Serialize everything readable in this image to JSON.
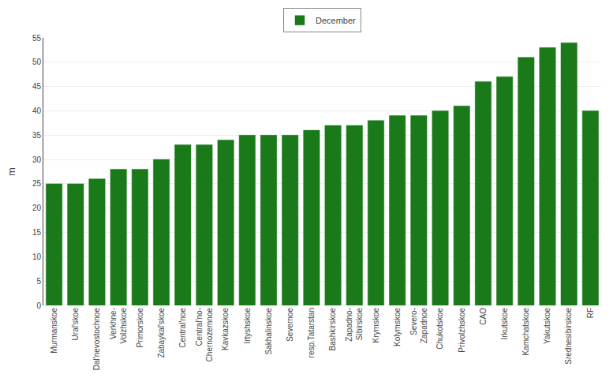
{
  "chart_data": {
    "type": "bar",
    "categories": [
      "Murmanskoe",
      "Ural'skoe",
      "Dal'nevostochnoe",
      "Verkhne-\nVolzhskoe",
      "Primorskoe",
      "Zabaykal'skoe",
      "Central'noe",
      "Central'no-\nChernozemnoe",
      "Kavkazskoe",
      "Irtyshskoe",
      "Sakhalinskoe",
      "Severnoe",
      "resp.Tatarstan",
      "Bashkirskoe",
      "Zapadno-\nSibirskoe",
      "Krymskoe",
      "Kolymskoe",
      "Severo-\nZapadnoe",
      "Chukotskoe",
      "Privolzhskoe",
      "CAO",
      "Irkutskoe",
      "Kamchatskoe",
      "Yakutskoe",
      "Srednesibirskoe",
      "RF"
    ],
    "series": [
      {
        "name": "December",
        "color": "#1a7a1a",
        "values": [
          25,
          25,
          26,
          28,
          28,
          30,
          33,
          33,
          34,
          35,
          35,
          35,
          36,
          37,
          37,
          38,
          39,
          39,
          40,
          41,
          46,
          47,
          51,
          53,
          54,
          40
        ]
      }
    ],
    "ylabel": "m",
    "ylim": [
      0,
      55
    ],
    "yticks": [
      0,
      5,
      10,
      15,
      20,
      25,
      30,
      35,
      40,
      45,
      50,
      55
    ],
    "grid": true,
    "legend": "top"
  }
}
